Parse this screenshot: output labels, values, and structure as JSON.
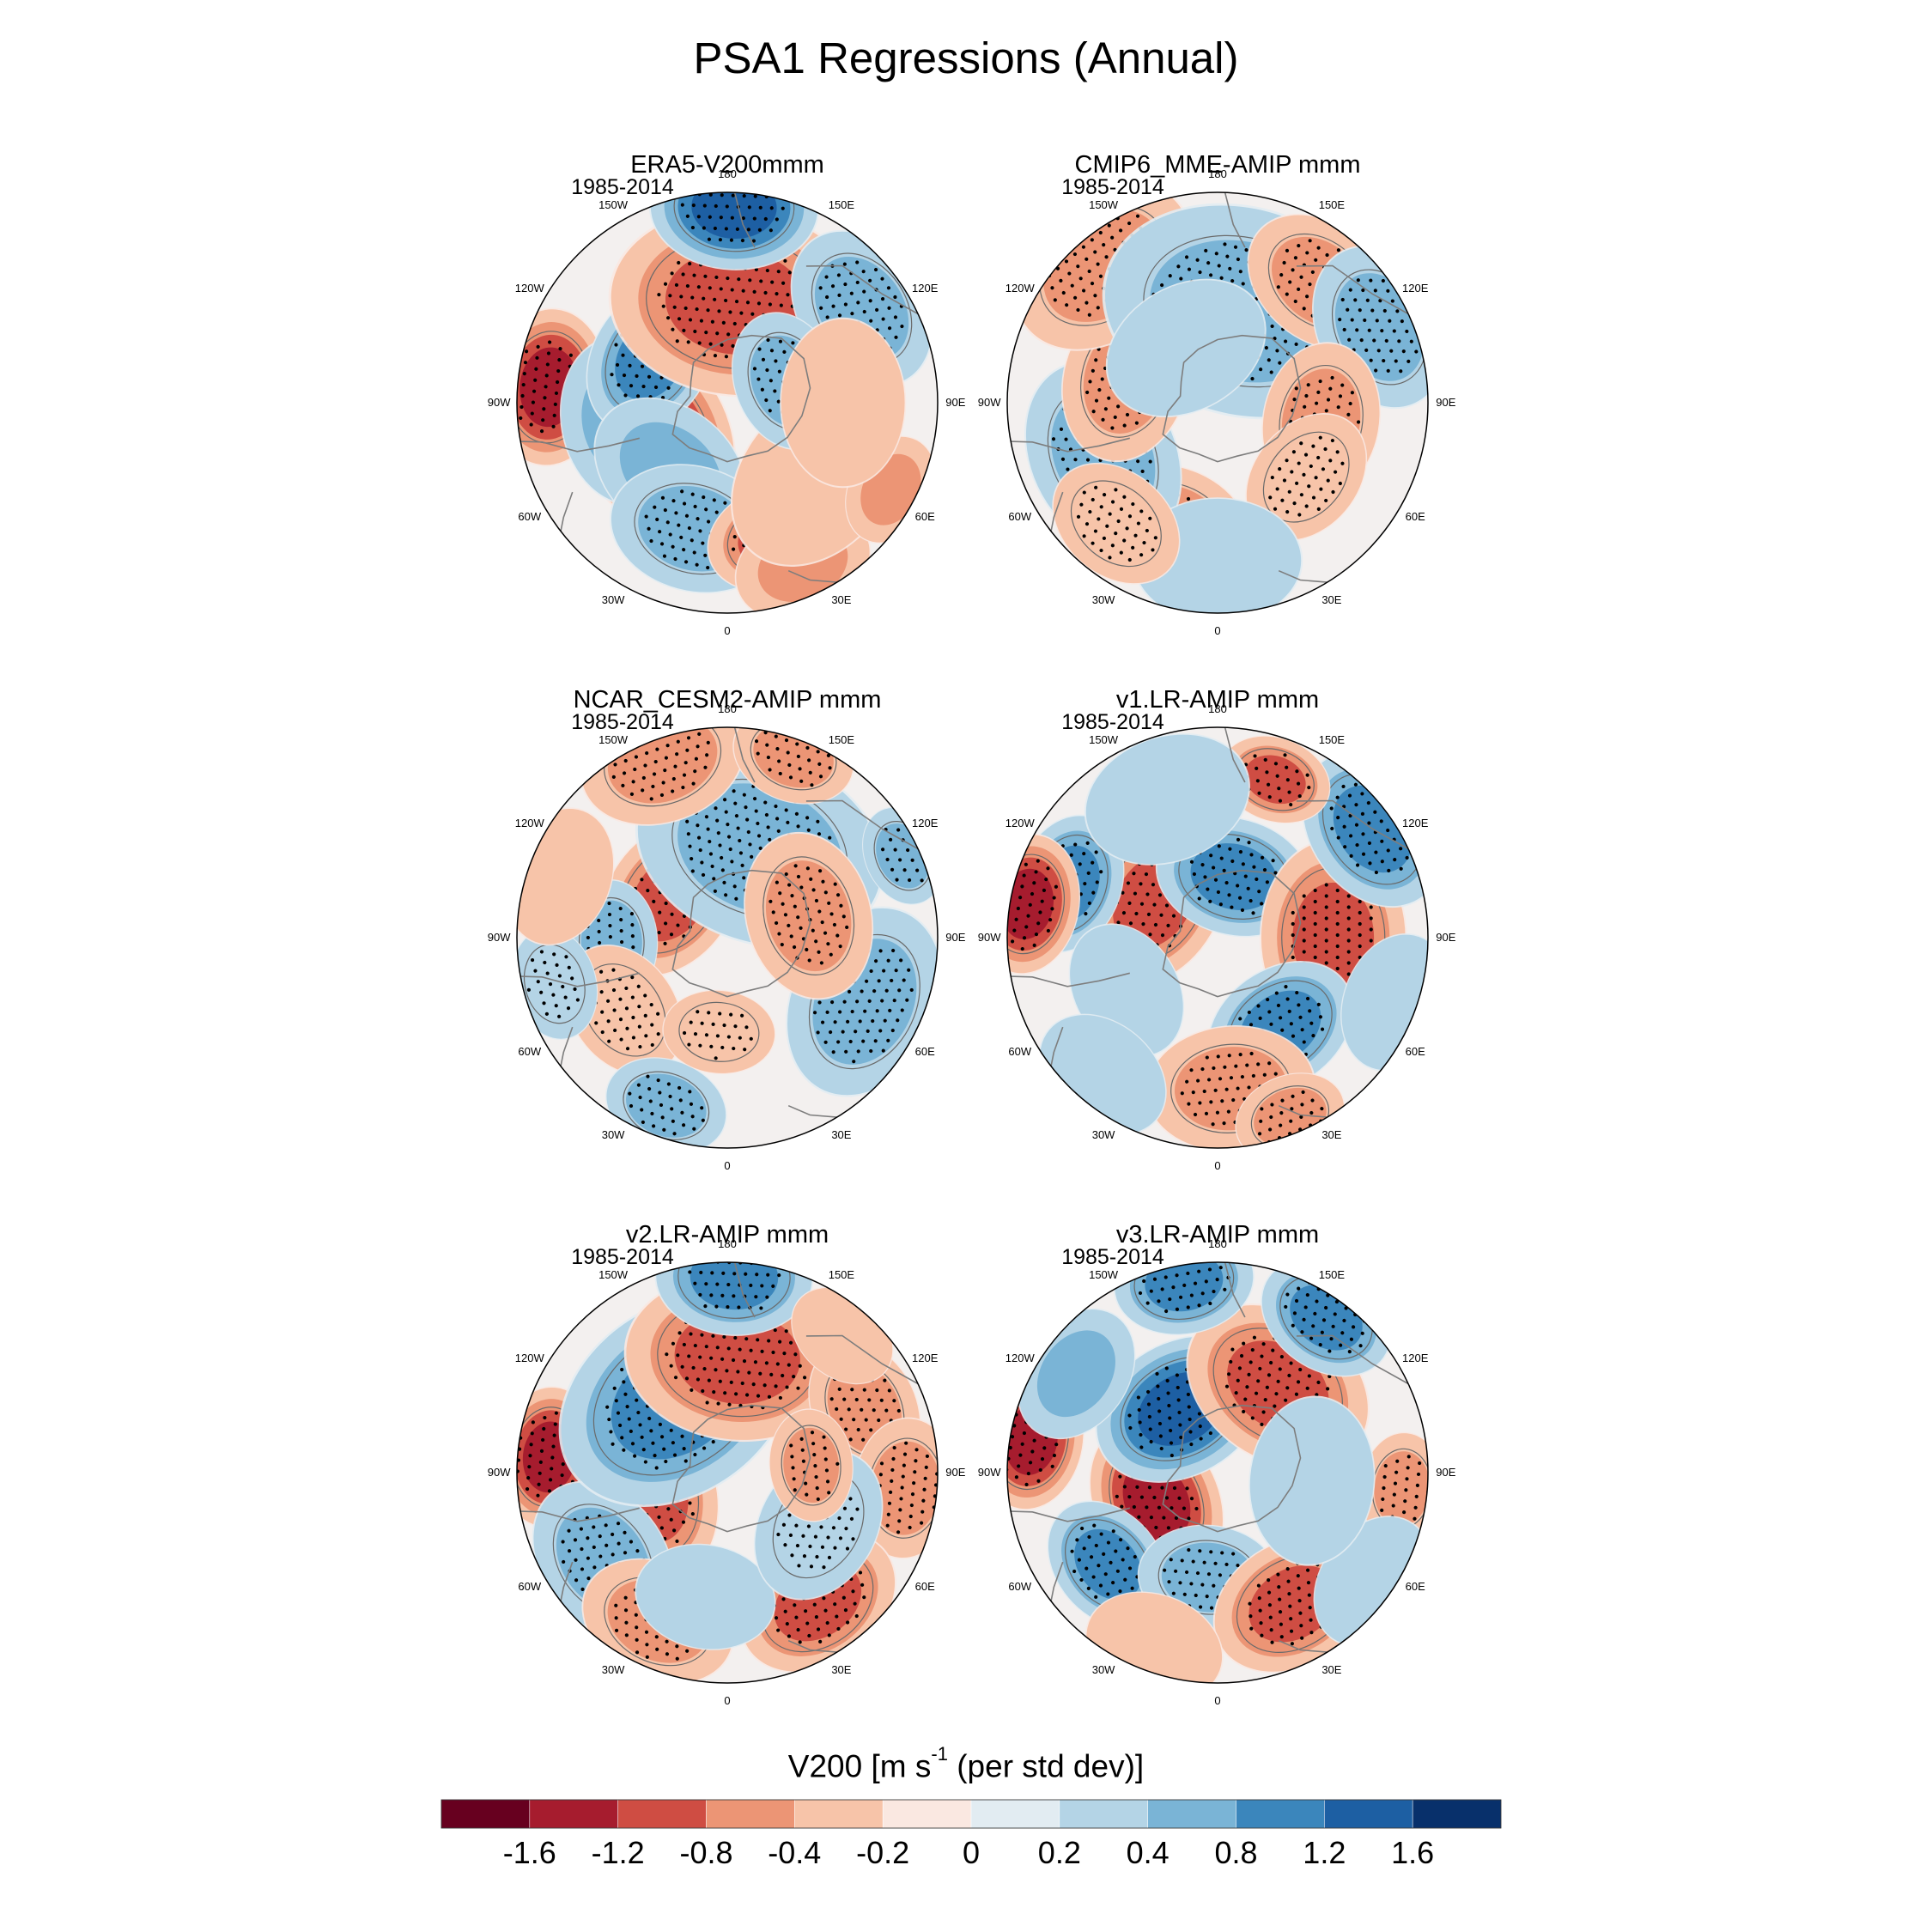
{
  "title": "PSA1 Regressions (Annual)",
  "colorbar": {
    "label_main": "V200 [m s",
    "label_sup": "-1",
    "label_tail": " (per std dev)]",
    "levels": [
      "-1.6",
      "-1.2",
      "-0.8",
      "-0.4",
      "-0.2",
      "0",
      "0.2",
      "0.4",
      "0.8",
      "1.2",
      "1.6"
    ],
    "colors": [
      "#67001f",
      "#a61c2e",
      "#cf4d43",
      "#ec9575",
      "#f7c4a9",
      "#fae8e1",
      "#e2ecf2",
      "#b4d4e6",
      "#7ab4d6",
      "#3b86bc",
      "#1d5fa3",
      "#08306b"
    ]
  },
  "chart_data": {
    "type": "polar-contour-maps",
    "projection": "south polar stereographic",
    "variable": "V200 regression on PSA1",
    "units": "m s-1 per std dev",
    "lon_labels": [
      "0",
      "30E",
      "60E",
      "90E",
      "120E",
      "150E",
      "180",
      "150W",
      "120W",
      "90W",
      "60W",
      "30W"
    ],
    "panels": [
      {
        "title": "ERA5-V200mmm",
        "period": "1985-2014",
        "features": [
          {
            "lon": -65,
            "r": 0.38,
            "v": -1.2,
            "s": 0.36,
            "stip": true
          },
          {
            "lon": -95,
            "r": 0.85,
            "v": -1.5,
            "s": 0.28,
            "stip": true
          },
          {
            "lon": -80,
            "r": 0.5,
            "v": 0.5,
            "s": 0.3,
            "stip": false
          },
          {
            "lon": -120,
            "r": 0.42,
            "v": 0.8,
            "s": 0.28,
            "stip": true
          },
          {
            "lon": 175,
            "r": 0.48,
            "v": -1.0,
            "s": 0.45,
            "stip": true
          },
          {
            "lon": 178,
            "r": 0.93,
            "v": 1.2,
            "s": 0.3,
            "stip": true
          },
          {
            "lon": 125,
            "r": 0.78,
            "v": 0.5,
            "s": 0.3,
            "stip": true
          },
          {
            "lon": -40,
            "r": 0.42,
            "v": 0.5,
            "s": 0.3,
            "stip": false
          },
          {
            "lon": -15,
            "r": 0.62,
            "v": 0.6,
            "s": 0.3,
            "stip": true
          },
          {
            "lon": 20,
            "r": 0.68,
            "v": -0.8,
            "s": 0.25,
            "stip": true
          },
          {
            "lon": 25,
            "r": 0.85,
            "v": -0.5,
            "s": 0.25,
            "stip": false
          },
          {
            "lon": 50,
            "r": 0.55,
            "v": -0.3,
            "s": 0.35,
            "stip": false
          },
          {
            "lon": 62,
            "r": 0.88,
            "v": -0.5,
            "s": 0.2,
            "stip": false
          },
          {
            "lon": 110,
            "r": 0.3,
            "v": 0.6,
            "s": 0.25,
            "stip": true
          },
          {
            "lon": 90,
            "r": 0.55,
            "v": -0.3,
            "s": 0.3,
            "stip": false
          }
        ]
      },
      {
        "title": "CMIP6_MME-AMIP  mmm",
        "period": "1985-2014",
        "features": [
          {
            "lon": -20,
            "r": 0.62,
            "v": -0.5,
            "s": 0.28,
            "stip": true
          },
          {
            "lon": -65,
            "r": 0.6,
            "v": 0.5,
            "s": 0.35,
            "stip": true
          },
          {
            "lon": -105,
            "r": 0.45,
            "v": -0.6,
            "s": 0.3,
            "stip": true
          },
          {
            "lon": -140,
            "r": 0.85,
            "v": -0.6,
            "s": 0.35,
            "stip": true
          },
          {
            "lon": 165,
            "r": 0.45,
            "v": 0.6,
            "s": 0.5,
            "stip": true
          },
          {
            "lon": 140,
            "r": 0.75,
            "v": -0.6,
            "s": 0.28,
            "stip": true
          },
          {
            "lon": 115,
            "r": 0.85,
            "v": 0.6,
            "s": 0.3,
            "stip": true
          },
          {
            "lon": 80,
            "r": 0.5,
            "v": -0.5,
            "s": 0.28,
            "stip": true
          },
          {
            "lon": 50,
            "r": 0.55,
            "v": -0.3,
            "s": 0.25,
            "stip": true
          },
          {
            "lon": 0,
            "r": 0.75,
            "v": 0.2,
            "s": 0.3,
            "stip": false
          },
          {
            "lon": -40,
            "r": 0.75,
            "v": -0.3,
            "s": 0.25,
            "stip": true
          },
          {
            "lon": -150,
            "r": 0.3,
            "v": 0.3,
            "s": 0.3,
            "stip": false
          }
        ]
      },
      {
        "title": "NCAR_CESM2-AMIP  mmm",
        "period": "1985-2014",
        "features": [
          {
            "lon": -125,
            "r": 0.33,
            "v": -0.8,
            "s": 0.3,
            "stip": true
          },
          {
            "lon": 160,
            "r": 0.45,
            "v": 0.7,
            "s": 0.45,
            "stip": true
          },
          {
            "lon": 65,
            "r": 0.72,
            "v": 0.6,
            "s": 0.35,
            "stip": true
          },
          {
            "lon": 105,
            "r": 0.4,
            "v": -0.7,
            "s": 0.3,
            "stip": true
          },
          {
            "lon": -160,
            "r": 0.9,
            "v": -0.7,
            "s": 0.3,
            "stip": true
          },
          {
            "lon": 160,
            "r": 0.92,
            "v": -0.6,
            "s": 0.22,
            "stip": true
          },
          {
            "lon": -88,
            "r": 0.55,
            "v": 0.5,
            "s": 0.22,
            "stip": true
          },
          {
            "lon": -55,
            "r": 0.6,
            "v": -0.3,
            "s": 0.25,
            "stip": true
          },
          {
            "lon": -20,
            "r": 0.85,
            "v": 0.4,
            "s": 0.22,
            "stip": true
          },
          {
            "lon": -5,
            "r": 0.45,
            "v": -0.3,
            "s": 0.2,
            "stip": true
          },
          {
            "lon": 115,
            "r": 0.92,
            "v": 0.4,
            "s": 0.18,
            "stip": true
          },
          {
            "lon": -75,
            "r": 0.85,
            "v": 0.3,
            "s": 0.2,
            "stip": true
          },
          {
            "lon": -110,
            "r": 0.85,
            "v": -0.2,
            "s": 0.25,
            "stip": false
          }
        ]
      },
      {
        "title": "v1.LR-AMIP  mmm",
        "period": "1985-2014",
        "features": [
          {
            "lon": -120,
            "r": 0.35,
            "v": -1.0,
            "s": 0.32,
            "stip": true
          },
          {
            "lon": -110,
            "r": 0.75,
            "v": 0.8,
            "s": 0.25,
            "stip": true
          },
          {
            "lon": -100,
            "r": 0.92,
            "v": -1.2,
            "s": 0.25,
            "stip": true
          },
          {
            "lon": -60,
            "r": 0.5,
            "v": 0.3,
            "s": 0.25,
            "stip": false
          },
          {
            "lon": 165,
            "r": 0.3,
            "v": 1.0,
            "s": 0.28,
            "stip": true
          },
          {
            "lon": 90,
            "r": 0.55,
            "v": -1.0,
            "s": 0.35,
            "stip": true
          },
          {
            "lon": 35,
            "r": 0.52,
            "v": 0.9,
            "s": 0.28,
            "stip": true
          },
          {
            "lon": 5,
            "r": 0.72,
            "v": -0.6,
            "s": 0.3,
            "stip": true
          },
          {
            "lon": 22,
            "r": 0.92,
            "v": -0.4,
            "s": 0.2,
            "stip": true
          },
          {
            "lon": 125,
            "r": 0.9,
            "v": 0.8,
            "s": 0.3,
            "stip": true
          },
          {
            "lon": 160,
            "r": 0.8,
            "v": -0.8,
            "s": 0.2,
            "stip": true
          },
          {
            "lon": -160,
            "r": 0.7,
            "v": 0.3,
            "s": 0.3,
            "stip": false
          },
          {
            "lon": -40,
            "r": 0.85,
            "v": 0.3,
            "s": 0.25,
            "stip": false
          },
          {
            "lon": 70,
            "r": 0.9,
            "v": 0.2,
            "s": 0.25,
            "stip": false
          }
        ]
      },
      {
        "title": "v2.LR-AMIP  mmm",
        "period": "1985-2014",
        "features": [
          {
            "lon": -75,
            "r": 0.38,
            "v": -0.9,
            "s": 0.32,
            "stip": true
          },
          {
            "lon": -95,
            "r": 0.85,
            "v": -1.2,
            "s": 0.25,
            "stip": true
          },
          {
            "lon": -55,
            "r": 0.72,
            "v": 0.7,
            "s": 0.3,
            "stip": true
          },
          {
            "lon": -25,
            "r": 0.78,
            "v": -0.6,
            "s": 0.28,
            "stip": true
          },
          {
            "lon": -145,
            "r": 0.42,
            "v": 0.8,
            "s": 0.45,
            "stip": true
          },
          {
            "lon": 175,
            "r": 0.55,
            "v": -0.9,
            "s": 0.4,
            "stip": true
          },
          {
            "lon": 178,
            "r": 0.93,
            "v": 1.0,
            "s": 0.28,
            "stip": true
          },
          {
            "lon": 115,
            "r": 0.72,
            "v": -0.5,
            "s": 0.25,
            "stip": true
          },
          {
            "lon": 85,
            "r": 0.85,
            "v": -0.6,
            "s": 0.25,
            "stip": true
          },
          {
            "lon": 35,
            "r": 0.75,
            "v": -0.8,
            "s": 0.3,
            "stip": true
          },
          {
            "lon": -10,
            "r": 0.6,
            "v": 0.3,
            "s": 0.25,
            "stip": false
          },
          {
            "lon": 60,
            "r": 0.5,
            "v": 0.3,
            "s": 0.28,
            "stip": true
          },
          {
            "lon": 95,
            "r": 0.4,
            "v": -0.4,
            "s": 0.2,
            "stip": true
          },
          {
            "lon": 140,
            "r": 0.85,
            "v": -0.3,
            "s": 0.2,
            "stip": false
          }
        ]
      },
      {
        "title": "v3.LR-AMIP  mmm",
        "period": "1985-2014",
        "features": [
          {
            "lon": -65,
            "r": 0.32,
            "v": -1.5,
            "s": 0.3,
            "stip": true
          },
          {
            "lon": -150,
            "r": 0.35,
            "v": 1.5,
            "s": 0.32,
            "stip": true
          },
          {
            "lon": -50,
            "r": 0.68,
            "v": 1.1,
            "s": 0.25,
            "stip": true
          },
          {
            "lon": -100,
            "r": 0.9,
            "v": -1.4,
            "s": 0.25,
            "stip": true
          },
          {
            "lon": -125,
            "r": 0.82,
            "v": 0.6,
            "s": 0.25,
            "stip": false
          },
          {
            "lon": 145,
            "r": 0.5,
            "v": -0.9,
            "s": 0.35,
            "stip": true
          },
          {
            "lon": 145,
            "r": 0.9,
            "v": 1.1,
            "s": 0.25,
            "stip": true
          },
          {
            "lon": -170,
            "r": 0.92,
            "v": 0.8,
            "s": 0.25,
            "stip": true
          },
          {
            "lon": -5,
            "r": 0.5,
            "v": 0.6,
            "s": 0.25,
            "stip": true
          },
          {
            "lon": 30,
            "r": 0.72,
            "v": -0.8,
            "s": 0.3,
            "stip": true
          },
          {
            "lon": -20,
            "r": 0.88,
            "v": -0.3,
            "s": 0.25,
            "stip": false
          },
          {
            "lon": 85,
            "r": 0.88,
            "v": -0.7,
            "s": 0.2,
            "stip": true
          },
          {
            "lon": 55,
            "r": 0.9,
            "v": 0.3,
            "s": 0.25,
            "stip": false
          },
          {
            "lon": 85,
            "r": 0.45,
            "v": 0.3,
            "s": 0.3,
            "stip": false
          }
        ]
      }
    ]
  }
}
